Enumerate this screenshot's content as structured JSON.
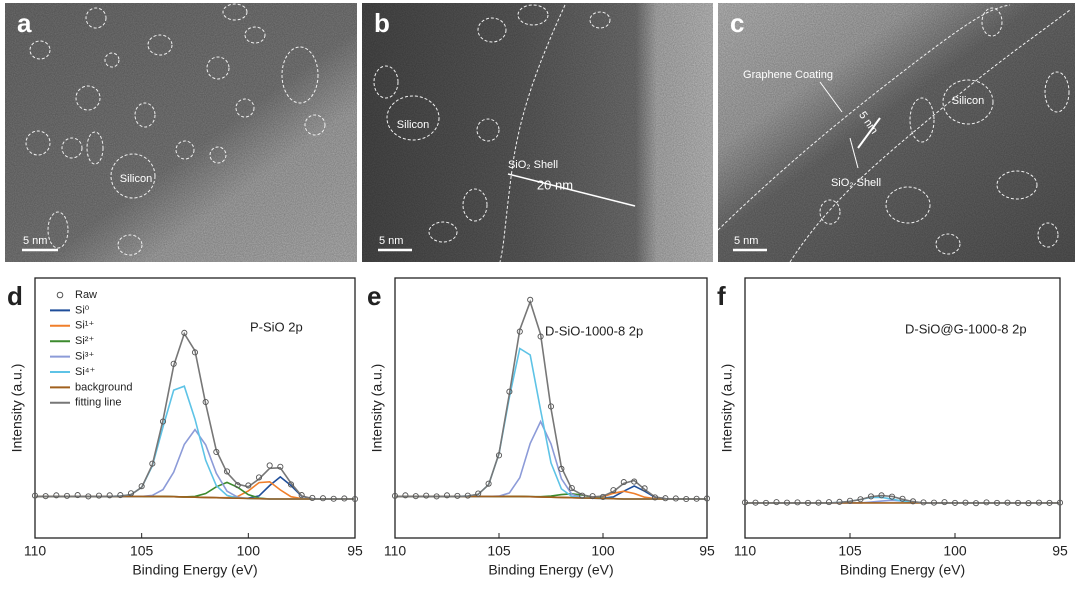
{
  "images": [
    {
      "label": "a",
      "scale_bar": "5 nm",
      "annotations": [
        "Silicon"
      ]
    },
    {
      "label": "b",
      "scale_bar": "5 nm",
      "annotations": [
        "Silicon",
        "SiO₂ Shell",
        "20 nm"
      ]
    },
    {
      "label": "c",
      "scale_bar": "5 nm",
      "annotations": [
        "Graphene Coating",
        "5 nm",
        "Silicon",
        "SiO₂ Shell"
      ]
    }
  ],
  "chart_data": [
    {
      "type": "line",
      "panel": "d",
      "annotation": "P-SiO 2p",
      "xlabel": "Binding Energy (eV)",
      "ylabel": "Intensity (a.u.)",
      "xlim": [
        110,
        95
      ],
      "xticks": [
        110,
        105,
        100,
        95
      ],
      "ylim": [
        0,
        100
      ],
      "legend": "upper left",
      "x": [
        110,
        109.5,
        109,
        108.5,
        108,
        107.5,
        107,
        106.5,
        106,
        105.5,
        105,
        104.5,
        104,
        103.5,
        103,
        102.5,
        102,
        101.5,
        101,
        100.5,
        100,
        99.5,
        99,
        98.5,
        98,
        97.5,
        97,
        96.5,
        96,
        95.5,
        95
      ],
      "series": [
        {
          "name": "Raw",
          "color": "#555555",
          "markers": true,
          "values": [
            16.3,
            16.1,
            16.4,
            16.2,
            16.5,
            16.0,
            16.3,
            16.4,
            16.5,
            17.2,
            19.9,
            28.6,
            44.8,
            67.0,
            78.9,
            71.4,
            52.3,
            33.1,
            25.6,
            20.3,
            20.2,
            23.3,
            27.9,
            27.4,
            20.6,
            16.5,
            15.4,
            15.3,
            15.1,
            15.2,
            15.0
          ]
        },
        {
          "name": "Si⁰",
          "color": "#1f4e9a",
          "values": [
            16,
            16,
            16,
            16,
            16,
            16,
            16,
            16,
            16,
            16,
            16,
            16,
            16,
            15.9,
            15.8,
            15.7,
            15.6,
            15.5,
            15.4,
            15.3,
            15.3,
            16.2,
            20.2,
            23.5,
            20.2,
            16.1,
            15.1,
            15,
            15,
            15,
            15
          ]
        },
        {
          "name": "Si¹⁺",
          "color": "#f07f2a",
          "values": [
            16,
            16,
            16,
            16,
            16,
            16,
            16,
            16,
            16,
            16,
            16,
            16,
            16,
            15.9,
            15.8,
            15.7,
            15.6,
            15.5,
            15.5,
            16.0,
            18.1,
            21.3,
            21.6,
            18.5,
            15.9,
            15.1,
            15,
            15,
            15,
            15,
            15
          ]
        },
        {
          "name": "Si²⁺",
          "color": "#3c8a2e",
          "values": [
            16,
            16,
            16,
            16,
            16,
            16,
            16,
            16,
            16,
            16,
            16,
            16,
            16,
            15.9,
            15.8,
            16.0,
            17.1,
            19.7,
            21.4,
            19.5,
            16.7,
            15.4,
            15,
            15,
            15,
            15,
            15,
            15,
            15,
            15,
            15
          ]
        },
        {
          "name": "Si³⁺",
          "color": "#8c9bd8",
          "values": [
            16,
            16,
            16,
            16,
            16,
            16,
            16,
            16,
            16,
            16,
            16,
            16.4,
            18.6,
            25.3,
            36.0,
            41.7,
            35.8,
            24.9,
            18.0,
            15.7,
            15.2,
            15.1,
            15,
            15,
            15,
            15,
            15,
            15,
            15,
            15,
            15
          ]
        },
        {
          "name": "Si⁴⁺",
          "color": "#5ec3e6",
          "values": [
            16,
            16,
            16,
            16,
            16,
            16,
            16,
            16,
            16.1,
            16.7,
            19.5,
            27.7,
            42.7,
            56.9,
            58.4,
            45.7,
            29.9,
            20.1,
            16.4,
            15.4,
            15.2,
            15.1,
            15,
            15,
            15,
            15,
            15,
            15,
            15,
            15,
            15
          ]
        },
        {
          "name": "background",
          "color": "#a0601e",
          "values": [
            16,
            16,
            16,
            16,
            16,
            16,
            16,
            16,
            16,
            16,
            16,
            16,
            16,
            15.9,
            15.8,
            15.7,
            15.6,
            15.5,
            15.4,
            15.3,
            15.2,
            15.1,
            15,
            15,
            15,
            15,
            15,
            15,
            15,
            15,
            15
          ]
        },
        {
          "name": "fitting line",
          "color": "#777777",
          "values": [
            16,
            16,
            16,
            16,
            16,
            16,
            16,
            16,
            16.1,
            16.7,
            19.5,
            28.1,
            45.3,
            66.3,
            78.6,
            72.0,
            51.6,
            33.7,
            25.1,
            20.7,
            19.7,
            22.7,
            26.8,
            27.0,
            21.1,
            16.2,
            15.1,
            15,
            15,
            15,
            15
          ]
        }
      ]
    },
    {
      "type": "line",
      "panel": "e",
      "annotation": "D-SiO-1000-8 2p",
      "xlabel": "Binding Energy (eV)",
      "ylabel": "Intensity (a.u.)",
      "xlim": [
        110,
        95
      ],
      "xticks": [
        110,
        105,
        100,
        95
      ],
      "ylim": [
        0,
        100
      ],
      "x": [
        110,
        109.5,
        109,
        108.5,
        108,
        107.5,
        107,
        106.5,
        106,
        105.5,
        105,
        104.5,
        104,
        103.5,
        103,
        102.5,
        102,
        101.5,
        101,
        100.5,
        100,
        99.5,
        99,
        98.5,
        98,
        97.5,
        97,
        96.5,
        96,
        95.5,
        95
      ],
      "series": [
        {
          "color": "#555555",
          "markers": true,
          "values": [
            16.2,
            16.4,
            16.1,
            16.3,
            16.0,
            16.4,
            16.2,
            16.3,
            17.1,
            20.9,
            31.8,
            56.3,
            79.4,
            91.6,
            77.5,
            50.6,
            26.6,
            19.2,
            16.3,
            16.1,
            15.8,
            18.4,
            21.5,
            21.7,
            19.1,
            15.6,
            15.3,
            15.2,
            15.0,
            15.1,
            15.2
          ]
        },
        {
          "color": "#1f4e9a",
          "values": [
            16,
            16,
            16,
            16,
            16,
            16,
            16,
            16,
            16,
            16,
            16,
            16,
            16,
            15.9,
            15.8,
            15.7,
            15.6,
            15.5,
            15.4,
            15.3,
            15.3,
            15.8,
            18.0,
            20.0,
            18.0,
            15.7,
            15.1,
            15,
            15,
            15,
            15
          ]
        },
        {
          "color": "#f07f2a",
          "values": [
            16,
            16,
            16,
            16,
            16,
            16,
            16,
            16,
            16,
            16,
            16,
            16,
            16,
            15.9,
            15.8,
            15.7,
            15.6,
            15.5,
            15.4,
            15.4,
            15.9,
            17.2,
            18.0,
            17.1,
            15.7,
            15.1,
            15,
            15,
            15,
            15,
            15
          ]
        },
        {
          "color": "#3c8a2e",
          "values": [
            16,
            16,
            16,
            16,
            16,
            16,
            16,
            16,
            16,
            16,
            16,
            16,
            16,
            15.9,
            15.9,
            16.1,
            16.7,
            17.0,
            16.5,
            15.7,
            15.3,
            15.1,
            15,
            15,
            15,
            15,
            15,
            15,
            15,
            15,
            15
          ]
        },
        {
          "color": "#8c9bd8",
          "values": [
            16,
            16,
            16,
            16,
            16,
            16,
            16,
            16,
            16,
            16,
            16.1,
            17.3,
            23.2,
            36.4,
            44.8,
            36.2,
            22.8,
            16.8,
            15.5,
            15.3,
            15.2,
            15.1,
            15,
            15,
            15,
            15,
            15,
            15,
            15,
            15,
            15
          ]
        },
        {
          "color": "#5ec3e6",
          "values": [
            16,
            16,
            16,
            16,
            16,
            16,
            16,
            16.1,
            16.8,
            20.5,
            32.4,
            54.2,
            72.9,
            70.4,
            49.2,
            28.9,
            18.9,
            16.0,
            15.4,
            15.3,
            15.2,
            15.1,
            15,
            15,
            15,
            15,
            15,
            15,
            15,
            15,
            15
          ]
        },
        {
          "color": "#a0601e",
          "values": [
            16,
            16,
            16,
            16,
            16,
            16,
            16,
            16,
            16,
            16,
            16,
            16,
            16,
            15.9,
            15.8,
            15.7,
            15.6,
            15.5,
            15.4,
            15.3,
            15.2,
            15.1,
            15,
            15,
            15,
            15,
            15,
            15,
            15,
            15,
            15
          ]
        },
        {
          "color": "#777777",
          "values": [
            16,
            16,
            16,
            16,
            16,
            16,
            16,
            16.1,
            16.8,
            20.5,
            32.5,
            55.5,
            80.1,
            90.9,
            78.3,
            49.8,
            27.2,
            18.8,
            16.6,
            15.8,
            16.1,
            17.9,
            21.0,
            22.1,
            18.7,
            15.8,
            15.1,
            15,
            15,
            15,
            15
          ]
        }
      ]
    },
    {
      "type": "line",
      "panel": "f",
      "annotation": "D-SiO@G-1000-8 2p",
      "xlabel": "Binding Energy (eV)",
      "ylabel": "Intensity (a.u.)",
      "xlim": [
        110,
        95
      ],
      "xticks": [
        110,
        105,
        100,
        95
      ],
      "ylim": [
        0,
        100
      ],
      "x": [
        110,
        109.5,
        109,
        108.5,
        108,
        107.5,
        107,
        106.5,
        106,
        105.5,
        105,
        104.5,
        104,
        103.5,
        103,
        102.5,
        102,
        101.5,
        101,
        100.5,
        100,
        99.5,
        99,
        98.5,
        98,
        97.5,
        97,
        96.5,
        96,
        95.5,
        95
      ],
      "series": [
        {
          "color": "#555555",
          "markers": true,
          "values": [
            13.7,
            13.6,
            13.5,
            13.8,
            13.6,
            13.7,
            13.5,
            13.6,
            13.8,
            13.9,
            14.3,
            14.9,
            16.0,
            16.4,
            15.9,
            15.1,
            14.1,
            13.7,
            13.6,
            13.8,
            13.5,
            13.6,
            13.4,
            13.7,
            13.5,
            13.6,
            13.5,
            13.4,
            13.6,
            13.5,
            13.6
          ]
        },
        {
          "color": "#8c9bd8",
          "values": [
            13.5,
            13.5,
            13.5,
            13.5,
            13.5,
            13.5,
            13.5,
            13.5,
            13.5,
            13.5,
            13.5,
            13.5,
            13.8,
            14.2,
            14.5,
            14.2,
            13.8,
            13.5,
            13.5,
            13.5,
            13.5,
            13.5,
            13.5,
            13.5,
            13.5,
            13.5,
            13.5,
            13.5,
            13.5,
            13.5,
            13.5
          ]
        },
        {
          "color": "#5ec3e6",
          "values": [
            13.5,
            13.5,
            13.5,
            13.5,
            13.5,
            13.5,
            13.5,
            13.5,
            13.5,
            13.7,
            14.1,
            14.8,
            15.6,
            15.6,
            15.0,
            14.2,
            13.7,
            13.5,
            13.5,
            13.5,
            13.5,
            13.5,
            13.5,
            13.5,
            13.5,
            13.5,
            13.5,
            13.5,
            13.5,
            13.5,
            13.5
          ]
        },
        {
          "color": "#a0601e",
          "values": [
            13.5,
            13.5,
            13.5,
            13.5,
            13.5,
            13.5,
            13.5,
            13.5,
            13.5,
            13.5,
            13.5,
            13.5,
            13.5,
            13.5,
            13.5,
            13.5,
            13.5,
            13.5,
            13.5,
            13.5,
            13.5,
            13.5,
            13.5,
            13.5,
            13.5,
            13.5,
            13.5,
            13.5,
            13.5,
            13.5,
            13.5
          ]
        },
        {
          "color": "#777777",
          "values": [
            13.5,
            13.5,
            13.5,
            13.5,
            13.5,
            13.5,
            13.5,
            13.5,
            13.5,
            13.7,
            14.1,
            14.8,
            15.9,
            16.3,
            16.0,
            14.9,
            14.0,
            13.5,
            13.5,
            13.5,
            13.5,
            13.5,
            13.5,
            13.5,
            13.5,
            13.5,
            13.5,
            13.5,
            13.5,
            13.5,
            13.5
          ]
        }
      ]
    }
  ]
}
